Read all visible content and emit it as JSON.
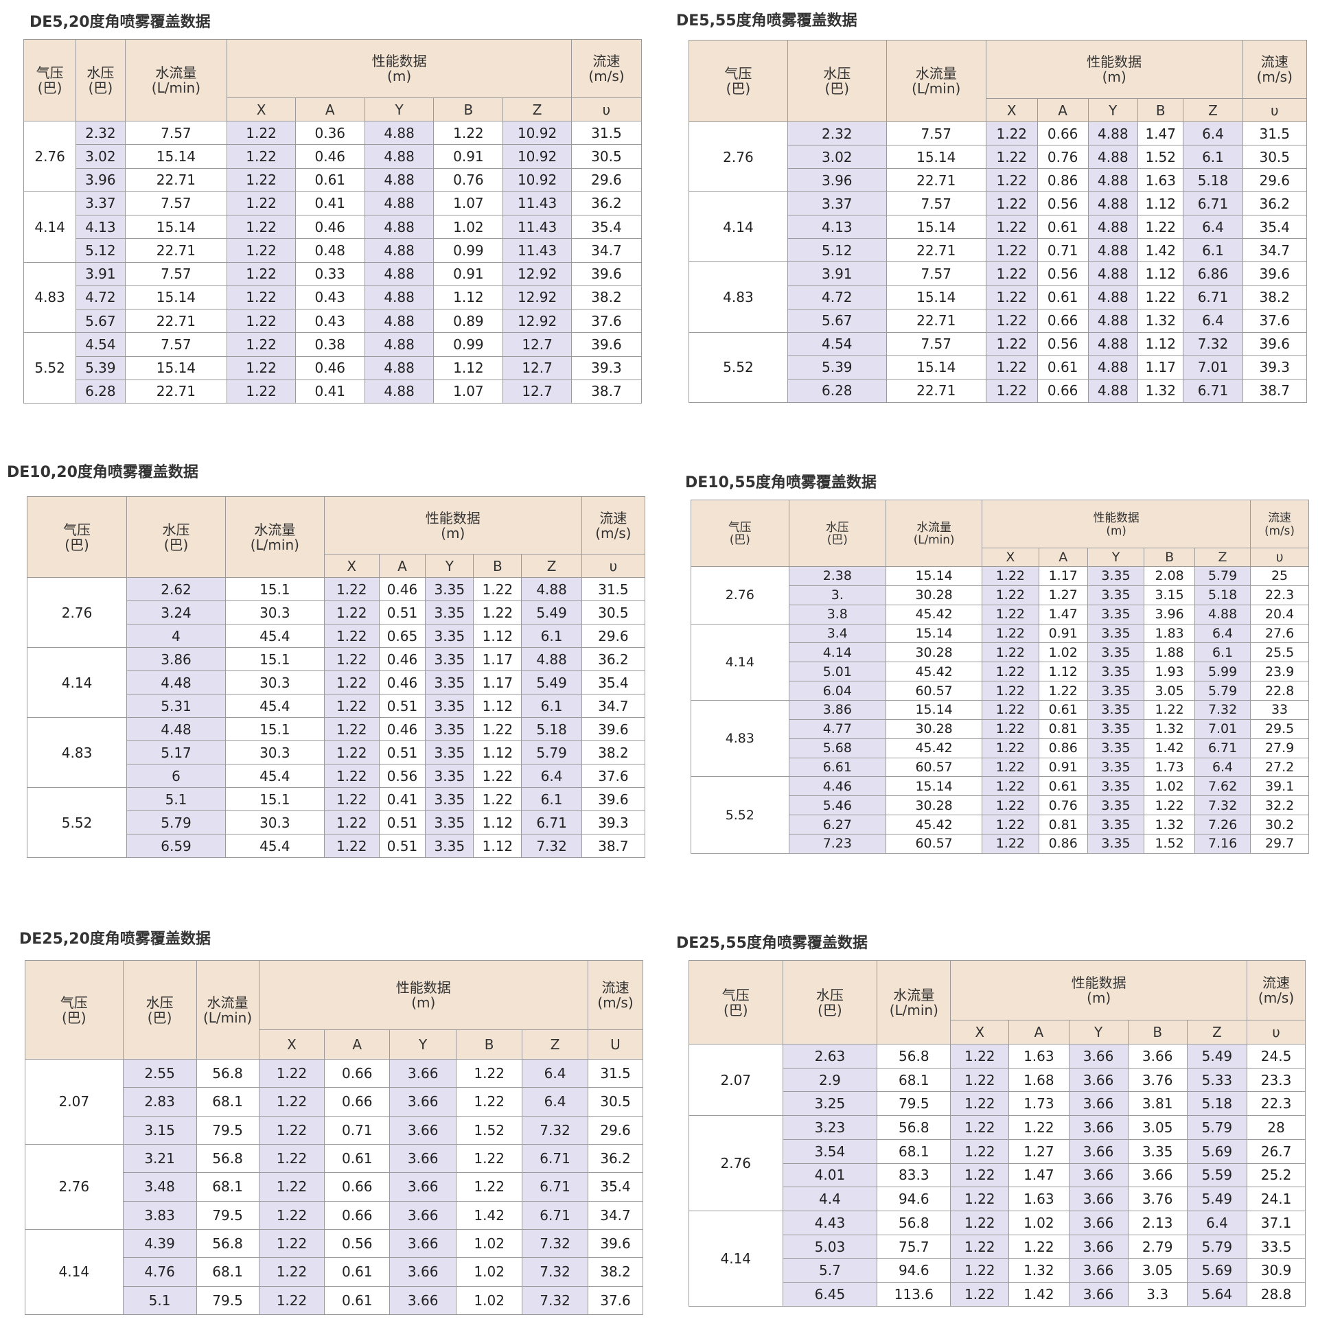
{
  "tables": [
    {
      "title": "DE5,20度角喷雾覆盖数据",
      "head": [
        "气压",
        "(巴)",
        "水压",
        "(巴)",
        "水流量",
        "(L/min)",
        "性能数据",
        "(m)",
        "流速",
        "(m/s)"
      ],
      "cols": [
        "X",
        "A",
        "Y",
        "B",
        "Z",
        "υ"
      ],
      "groups": [
        {
          "air": "2.76",
          "rows": [
            [
              "2.32",
              "7.57",
              "1.22",
              "0.36",
              "4.88",
              "1.22",
              "10.92",
              "31.5"
            ],
            [
              "3.02",
              "15.14",
              "1.22",
              "0.46",
              "4.88",
              "0.91",
              "10.92",
              "30.5"
            ],
            [
              "3.96",
              "22.71",
              "1.22",
              "0.61",
              "4.88",
              "0.76",
              "10.92",
              "29.6"
            ]
          ]
        },
        {
          "air": "4.14",
          "rows": [
            [
              "3.37",
              "7.57",
              "1.22",
              "0.41",
              "4.88",
              "1.07",
              "11.43",
              "36.2"
            ],
            [
              "4.13",
              "15.14",
              "1.22",
              "0.46",
              "4.88",
              "1.02",
              "11.43",
              "35.4"
            ],
            [
              "5.12",
              "22.71",
              "1.22",
              "0.48",
              "4.88",
              "0.99",
              "11.43",
              "34.7"
            ]
          ]
        },
        {
          "air": "4.83",
          "rows": [
            [
              "3.91",
              "7.57",
              "1.22",
              "0.33",
              "4.88",
              "0.91",
              "12.92",
              "39.6"
            ],
            [
              "4.72",
              "15.14",
              "1.22",
              "0.43",
              "4.88",
              "1.12",
              "12.92",
              "38.2"
            ],
            [
              "5.67",
              "22.71",
              "1.22",
              "0.43",
              "4.88",
              "0.89",
              "12.92",
              "37.6"
            ]
          ]
        },
        {
          "air": "5.52",
          "rows": [
            [
              "4.54",
              "7.57",
              "1.22",
              "0.38",
              "4.88",
              "0.99",
              "12.7",
              "39.6"
            ],
            [
              "5.39",
              "15.14",
              "1.22",
              "0.46",
              "4.88",
              "1.12",
              "12.7",
              "39.3"
            ],
            [
              "6.28",
              "22.71",
              "1.22",
              "0.41",
              "4.88",
              "1.07",
              "12.7",
              "38.7"
            ]
          ]
        }
      ]
    },
    {
      "title": "DE5,55度角喷雾覆盖数据",
      "head": [
        "气压",
        "(巴)",
        "水压",
        "(巴)",
        "水流量",
        "(L/min)",
        "性能数据",
        "(m)",
        "流速",
        "(m/s)"
      ],
      "cols": [
        "X",
        "A",
        "Y",
        "B",
        "Z",
        "υ"
      ],
      "groups": [
        {
          "air": "2.76",
          "rows": [
            [
              "2.32",
              "7.57",
              "1.22",
              "0.66",
              "4.88",
              "1.47",
              "6.4",
              "31.5"
            ],
            [
              "3.02",
              "15.14",
              "1.22",
              "0.76",
              "4.88",
              "1.52",
              "6.1",
              "30.5"
            ],
            [
              "3.96",
              "22.71",
              "1.22",
              "0.86",
              "4.88",
              "1.63",
              "5.18",
              "29.6"
            ]
          ]
        },
        {
          "air": "4.14",
          "rows": [
            [
              "3.37",
              "7.57",
              "1.22",
              "0.56",
              "4.88",
              "1.12",
              "6.71",
              "36.2"
            ],
            [
              "4.13",
              "15.14",
              "1.22",
              "0.61",
              "4.88",
              "1.22",
              "6.4",
              "35.4"
            ],
            [
              "5.12",
              "22.71",
              "1.22",
              "0.71",
              "4.88",
              "1.42",
              "6.1",
              "34.7"
            ]
          ]
        },
        {
          "air": "4.83",
          "rows": [
            [
              "3.91",
              "7.57",
              "1.22",
              "0.56",
              "4.88",
              "1.12",
              "6.86",
              "39.6"
            ],
            [
              "4.72",
              "15.14",
              "1.22",
              "0.61",
              "4.88",
              "1.22",
              "6.71",
              "38.2"
            ],
            [
              "5.67",
              "22.71",
              "1.22",
              "0.66",
              "4.88",
              "1.32",
              "6.4",
              "37.6"
            ]
          ]
        },
        {
          "air": "5.52",
          "rows": [
            [
              "4.54",
              "7.57",
              "1.22",
              "0.56",
              "4.88",
              "1.12",
              "7.32",
              "39.6"
            ],
            [
              "5.39",
              "15.14",
              "1.22",
              "0.61",
              "4.88",
              "1.17",
              "7.01",
              "39.3"
            ],
            [
              "6.28",
              "22.71",
              "1.22",
              "0.66",
              "4.88",
              "1.32",
              "6.71",
              "38.7"
            ]
          ]
        }
      ]
    },
    {
      "title": "DE10,20度角喷雾覆盖数据",
      "head": [
        "气压",
        "(巴)",
        "水压",
        "(巴)",
        "水流量",
        "(L/min)",
        "性能数据",
        "(m)",
        "流速",
        "(m/s)"
      ],
      "cols": [
        "X",
        "A",
        "Y",
        "B",
        "Z",
        "υ"
      ],
      "groups": [
        {
          "air": "2.76",
          "rows": [
            [
              "2.62",
              "15.1",
              "1.22",
              "0.46",
              "3.35",
              "1.22",
              "4.88",
              "31.5"
            ],
            [
              "3.24",
              "30.3",
              "1.22",
              "0.51",
              "3.35",
              "1.22",
              "5.49",
              "30.5"
            ],
            [
              "4",
              "45.4",
              "1.22",
              "0.65",
              "3.35",
              "1.12",
              "6.1",
              "29.6"
            ]
          ]
        },
        {
          "air": "4.14",
          "rows": [
            [
              "3.86",
              "15.1",
              "1.22",
              "0.46",
              "3.35",
              "1.17",
              "4.88",
              "36.2"
            ],
            [
              "4.48",
              "30.3",
              "1.22",
              "0.46",
              "3.35",
              "1.17",
              "5.49",
              "35.4"
            ],
            [
              "5.31",
              "45.4",
              "1.22",
              "0.51",
              "3.35",
              "1.12",
              "6.1",
              "34.7"
            ]
          ]
        },
        {
          "air": "4.83",
          "rows": [
            [
              "4.48",
              "15.1",
              "1.22",
              "0.46",
              "3.35",
              "1.22",
              "5.18",
              "39.6"
            ],
            [
              "5.17",
              "30.3",
              "1.22",
              "0.51",
              "3.35",
              "1.12",
              "5.79",
              "38.2"
            ],
            [
              "6",
              "45.4",
              "1.22",
              "0.56",
              "3.35",
              "1.22",
              "6.4",
              "37.6"
            ]
          ]
        },
        {
          "air": "5.52",
          "rows": [
            [
              "5.1",
              "15.1",
              "1.22",
              "0.41",
              "3.35",
              "1.22",
              "6.1",
              "39.6"
            ],
            [
              "5.79",
              "30.3",
              "1.22",
              "0.51",
              "3.35",
              "1.12",
              "6.71",
              "39.3"
            ],
            [
              "6.59",
              "45.4",
              "1.22",
              "0.51",
              "3.35",
              "1.12",
              "7.32",
              "38.7"
            ]
          ]
        }
      ]
    },
    {
      "title": "DE10,55度角喷雾覆盖数据",
      "head": [
        "气压",
        "(巴)",
        "水压",
        "(巴)",
        "水流量",
        "(L/min)",
        "性能数据",
        "(m)",
        "流速",
        "(m/s)"
      ],
      "cols": [
        "X",
        "A",
        "Y",
        "B",
        "Z",
        "υ"
      ],
      "groups": [
        {
          "air": "2.76",
          "rows": [
            [
              "2.38",
              "15.14",
              "1.22",
              "1.17",
              "3.35",
              "2.08",
              "5.79",
              "25"
            ],
            [
              "3.",
              "30.28",
              "1.22",
              "1.27",
              "3.35",
              "3.15",
              "5.18",
              "22.3"
            ],
            [
              "3.8",
              "45.42",
              "1.22",
              "1.47",
              "3.35",
              "3.96",
              "4.88",
              "20.4"
            ]
          ]
        },
        {
          "air": "4.14",
          "rows": [
            [
              "3.4",
              "15.14",
              "1.22",
              "0.91",
              "3.35",
              "1.83",
              "6.4",
              "27.6"
            ],
            [
              "4.14",
              "30.28",
              "1.22",
              "1.02",
              "3.35",
              "1.88",
              "6.1",
              "25.5"
            ],
            [
              "5.01",
              "45.42",
              "1.22",
              "1.12",
              "3.35",
              "1.93",
              "5.99",
              "23.9"
            ],
            [
              "6.04",
              "60.57",
              "1.22",
              "1.22",
              "3.35",
              "3.05",
              "5.79",
              "22.8"
            ]
          ]
        },
        {
          "air": "4.83",
          "rows": [
            [
              "3.86",
              "15.14",
              "1.22",
              "0.61",
              "3.35",
              "1.22",
              "7.32",
              "33"
            ],
            [
              "4.77",
              "30.28",
              "1.22",
              "0.81",
              "3.35",
              "1.32",
              "7.01",
              "29.5"
            ],
            [
              "5.68",
              "45.42",
              "1.22",
              "0.86",
              "3.35",
              "1.42",
              "6.71",
              "27.9"
            ],
            [
              "6.61",
              "60.57",
              "1.22",
              "0.91",
              "3.35",
              "1.73",
              "6.4",
              "27.2"
            ]
          ]
        },
        {
          "air": "5.52",
          "rows": [
            [
              "4.46",
              "15.14",
              "1.22",
              "0.61",
              "3.35",
              "1.02",
              "7.62",
              "39.1"
            ],
            [
              "5.46",
              "30.28",
              "1.22",
              "0.76",
              "3.35",
              "1.22",
              "7.32",
              "32.2"
            ],
            [
              "6.27",
              "45.42",
              "1.22",
              "0.81",
              "3.35",
              "1.32",
              "7.26",
              "30.2"
            ],
            [
              "7.23",
              "60.57",
              "1.22",
              "0.86",
              "3.35",
              "1.52",
              "7.16",
              "29.7"
            ]
          ]
        }
      ]
    },
    {
      "title": "DE25,20度角喷雾覆盖数据",
      "head": [
        "气压",
        "(巴)",
        "水压",
        "(巴)",
        "水流量",
        "(L/min)",
        "性能数据",
        "(m)",
        "流速",
        "(m/s)"
      ],
      "cols": [
        "X",
        "A",
        "Y",
        "B",
        "Z",
        "U"
      ],
      "groups": [
        {
          "air": "2.07",
          "rows": [
            [
              "2.55",
              "56.8",
              "1.22",
              "0.66",
              "3.66",
              "1.22",
              "6.4",
              "31.5"
            ],
            [
              "2.83",
              "68.1",
              "1.22",
              "0.66",
              "3.66",
              "1.22",
              "6.4",
              "30.5"
            ],
            [
              "3.15",
              "79.5",
              "1.22",
              "0.71",
              "3.66",
              "1.52",
              "7.32",
              "29.6"
            ]
          ]
        },
        {
          "air": "2.76",
          "rows": [
            [
              "3.21",
              "56.8",
              "1.22",
              "0.61",
              "3.66",
              "1.22",
              "6.71",
              "36.2"
            ],
            [
              "3.48",
              "68.1",
              "1.22",
              "0.66",
              "3.66",
              "1.22",
              "6.71",
              "35.4"
            ],
            [
              "3.83",
              "79.5",
              "1.22",
              "0.66",
              "3.66",
              "1.42",
              "6.71",
              "34.7"
            ]
          ]
        },
        {
          "air": "4.14",
          "rows": [
            [
              "4.39",
              "56.8",
              "1.22",
              "0.56",
              "3.66",
              "1.02",
              "7.32",
              "39.6"
            ],
            [
              "4.76",
              "68.1",
              "1.22",
              "0.61",
              "3.66",
              "1.02",
              "7.32",
              "38.2"
            ],
            [
              "5.1",
              "79.5",
              "1.22",
              "0.61",
              "3.66",
              "1.02",
              "7.32",
              "37.6"
            ]
          ]
        }
      ]
    },
    {
      "title": "DE25,55度角喷雾覆盖数据",
      "head": [
        "气压",
        "(巴)",
        "水压",
        "(巴)",
        "水流量",
        "(L/min)",
        "性能数据",
        "(m)",
        "流速",
        "(m/s)"
      ],
      "cols": [
        "X",
        "A",
        "Y",
        "B",
        "Z",
        "υ"
      ],
      "groups": [
        {
          "air": "2.07",
          "rows": [
            [
              "2.63",
              "56.8",
              "1.22",
              "1.63",
              "3.66",
              "3.66",
              "5.49",
              "24.5"
            ],
            [
              "2.9",
              "68.1",
              "1.22",
              "1.68",
              "3.66",
              "3.76",
              "5.33",
              "23.3"
            ],
            [
              "3.25",
              "79.5",
              "1.22",
              "1.73",
              "3.66",
              "3.81",
              "5.18",
              "22.3"
            ]
          ]
        },
        {
          "air": "2.76",
          "rows": [
            [
              "3.23",
              "56.8",
              "1.22",
              "1.22",
              "3.66",
              "3.05",
              "5.79",
              "28"
            ],
            [
              "3.54",
              "68.1",
              "1.22",
              "1.27",
              "3.66",
              "3.35",
              "5.69",
              "26.7"
            ],
            [
              "4.01",
              "83.3",
              "1.22",
              "1.47",
              "3.66",
              "3.66",
              "5.59",
              "25.2"
            ],
            [
              "4.4",
              "94.6",
              "1.22",
              "1.63",
              "3.66",
              "3.76",
              "5.49",
              "24.1"
            ]
          ]
        },
        {
          "air": "4.14",
          "rows": [
            [
              "4.43",
              "56.8",
              "1.22",
              "1.02",
              "3.66",
              "2.13",
              "6.4",
              "37.1"
            ],
            [
              "5.03",
              "75.7",
              "1.22",
              "1.22",
              "3.66",
              "2.79",
              "5.79",
              "33.5"
            ],
            [
              "5.7",
              "94.6",
              "1.22",
              "1.32",
              "3.66",
              "3.05",
              "5.69",
              "30.9"
            ],
            [
              "6.45",
              "113.6",
              "1.22",
              "1.42",
              "3.66",
              "3.3",
              "5.64",
              "28.8"
            ]
          ]
        }
      ]
    }
  ]
}
